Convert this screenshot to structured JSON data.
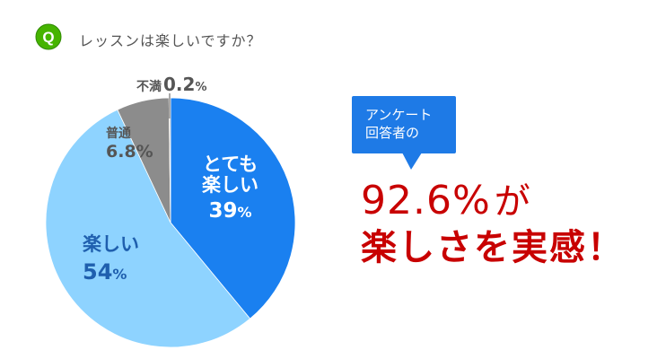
{
  "question": {
    "badge": "Q",
    "text": "レッスンは楽しいですか？"
  },
  "chart_data": {
    "type": "pie",
    "title": "",
    "start": "12 o'clock, clockwise",
    "slices": [
      {
        "name": "とても楽しい",
        "value": 39,
        "color": "#1a80f0"
      },
      {
        "name": "楽しい",
        "value": 54,
        "color": "#8ed3ff"
      },
      {
        "name": "普通",
        "value": 6.8,
        "color": "#8c8c8c"
      },
      {
        "name": "不満",
        "value": 0.2,
        "color": "#bbbbbb"
      }
    ]
  },
  "labels": {
    "fuman": {
      "name": "不満",
      "value": "0.2",
      "unit": "%"
    },
    "futsu": {
      "name": "普通",
      "value": "6.8%"
    },
    "totemo": {
      "line1": "とても",
      "line2": "楽しい",
      "value": "39",
      "unit": "%"
    },
    "tanoshii": {
      "name": "楽しい",
      "value": "54",
      "unit": "%"
    }
  },
  "callout": {
    "line1": "アンケート",
    "line2": "回答者の"
  },
  "headline": {
    "percent": "92.6%",
    "suffix": "が",
    "line2": "楽しさを実感！"
  }
}
